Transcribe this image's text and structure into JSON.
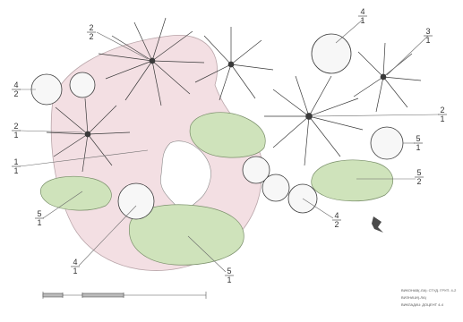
{
  "colors": {
    "lawn": "#f3dfe3",
    "shrub": "#cfe3bb",
    "shrub_dark": "#b9d4a2",
    "line": "#3a3a3a",
    "leader": "#6a6a6a"
  },
  "icons": {
    "tree": "tree-symbol-icon",
    "conifer": "round-conifer-icon",
    "shrub": "shrub-bed-icon",
    "north": "north-arrow-icon"
  },
  "labels": [
    {
      "id": "l1",
      "top": "2",
      "bottom": "2"
    },
    {
      "id": "l2",
      "top": "4",
      "bottom": "1"
    },
    {
      "id": "l3",
      "top": "3",
      "bottom": "1"
    },
    {
      "id": "l4",
      "top": "4",
      "bottom": "2"
    },
    {
      "id": "l5",
      "top": "2",
      "bottom": "1"
    },
    {
      "id": "l6",
      "top": "2",
      "bottom": "1"
    },
    {
      "id": "l7",
      "top": "1",
      "bottom": "1"
    },
    {
      "id": "l8",
      "top": "5",
      "bottom": "1"
    },
    {
      "id": "l9",
      "top": "5",
      "bottom": "2"
    },
    {
      "id": "l10",
      "top": "5",
      "bottom": "1"
    },
    {
      "id": "l11",
      "top": "4",
      "bottom": "2"
    },
    {
      "id": "l12",
      "top": "4",
      "bottom": "1"
    },
    {
      "id": "l13",
      "top": "5",
      "bottom": "1"
    }
  ],
  "notes": [
    "ВИКОНАВ(-ЛА): СТУД. ГРУП. 4-2",
    "ВИЗНАЧИ(-ЛА)",
    "ВИКЛАДАЧ: ДОЦЕНТ 4-4"
  ]
}
